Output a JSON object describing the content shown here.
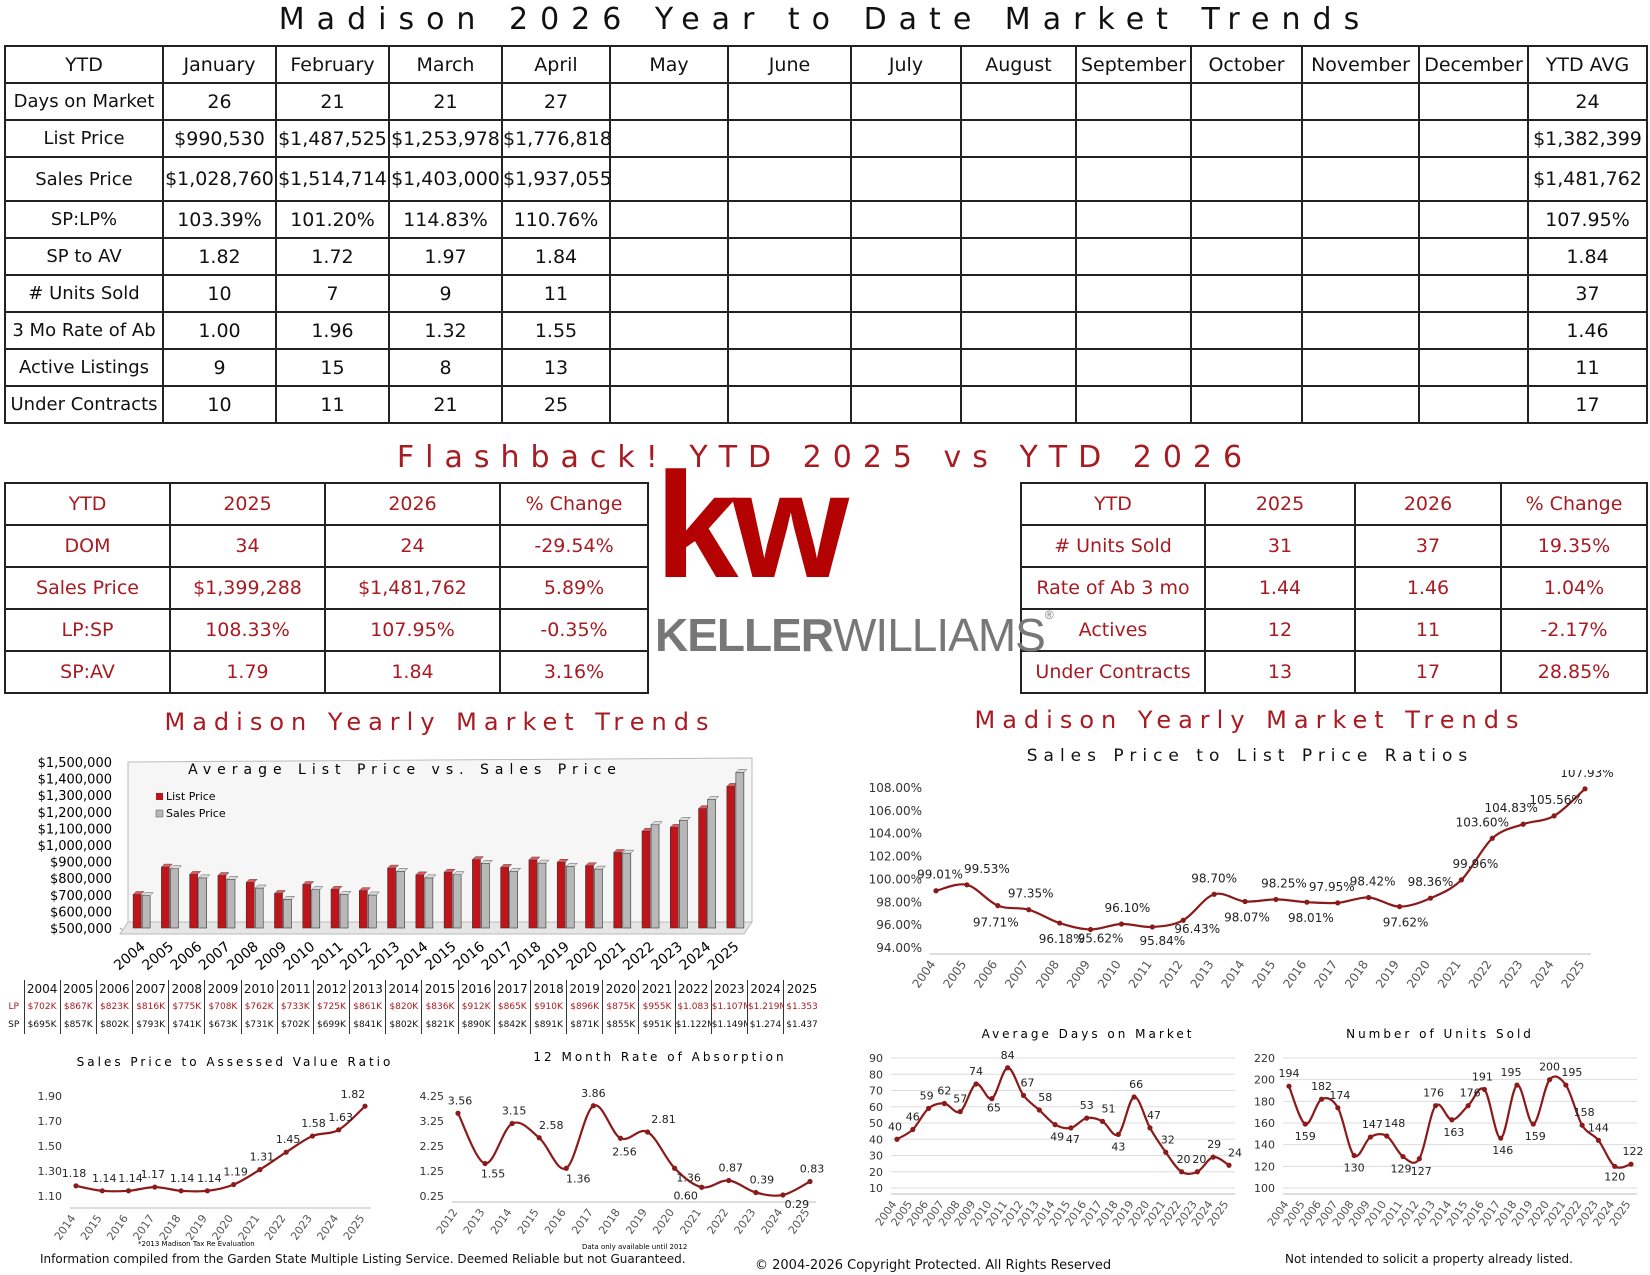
{
  "title": "Madison 2026 Year to Date Market Trends",
  "ytd": {
    "headers": [
      "YTD",
      "January",
      "February",
      "March",
      "April",
      "May",
      "June",
      "July",
      "August",
      "September",
      "October",
      "November",
      "December",
      "YTD AVG"
    ],
    "rows": [
      {
        "label": "Days on Market",
        "values": [
          "26",
          "21",
          "21",
          "27",
          "",
          "",
          "",
          "",
          "",
          "",
          "",
          ""
        ],
        "avg": "24"
      },
      {
        "label": "List Price",
        "values": [
          "$990,530",
          "$1,487,525",
          "$1,253,978",
          "$1,776,818",
          "",
          "",
          "",
          "",
          "",
          "",
          "",
          ""
        ],
        "avg": "$1,382,399"
      },
      {
        "label": "Sales Price",
        "values": [
          "$1,028,760",
          "$1,514,714",
          "$1,403,000",
          "$1,937,055",
          "",
          "",
          "",
          "",
          "",
          "",
          "",
          ""
        ],
        "avg": "$1,481,762"
      },
      {
        "label": "SP:LP%",
        "values": [
          "103.39%",
          "101.20%",
          "114.83%",
          "110.76%",
          "",
          "",
          "",
          "",
          "",
          "",
          "",
          ""
        ],
        "avg": "107.95%"
      },
      {
        "label": "SP to AV",
        "values": [
          "1.82",
          "1.72",
          "1.97",
          "1.84",
          "",
          "",
          "",
          "",
          "",
          "",
          "",
          ""
        ],
        "avg": "1.84"
      },
      {
        "label": "# Units Sold",
        "values": [
          "10",
          "7",
          "9",
          "11",
          "",
          "",
          "",
          "",
          "",
          "",
          "",
          ""
        ],
        "avg": "37"
      },
      {
        "label": "3 Mo Rate of Ab",
        "values": [
          "1.00",
          "1.96",
          "1.32",
          "1.55",
          "",
          "",
          "",
          "",
          "",
          "",
          "",
          ""
        ],
        "avg": "1.46"
      },
      {
        "label": "Active Listings",
        "values": [
          "9",
          "15",
          "8",
          "13",
          "",
          "",
          "",
          "",
          "",
          "",
          "",
          ""
        ],
        "avg": "11"
      },
      {
        "label": "Under Contracts",
        "values": [
          "10",
          "11",
          "21",
          "25",
          "",
          "",
          "",
          "",
          "",
          "",
          "",
          ""
        ],
        "avg": "17"
      }
    ]
  },
  "flashback": {
    "title": "Flashback!  YTD 2025 vs YTD 2026",
    "left": {
      "headers": [
        "YTD",
        "2025",
        "2026",
        "% Change"
      ],
      "rows": [
        [
          "DOM",
          "34",
          "24",
          "-29.54%"
        ],
        [
          "Sales Price",
          "$1,399,288",
          "$1,481,762",
          "5.89%"
        ],
        [
          "LP:SP",
          "108.33%",
          "107.95%",
          "-0.35%"
        ],
        [
          "SP:AV",
          "1.79",
          "1.84",
          "3.16%"
        ]
      ]
    },
    "right": {
      "headers": [
        "YTD",
        "2025",
        "2026",
        "% Change"
      ],
      "rows": [
        [
          "# Units Sold",
          "31",
          "37",
          "19.35%"
        ],
        [
          "Rate of Ab 3 mo",
          "1.44",
          "1.46",
          "1.04%"
        ],
        [
          "Actives",
          "12",
          "11",
          "-2.17%"
        ],
        [
          "Under Contracts",
          "13",
          "17",
          "28.85%"
        ]
      ]
    }
  },
  "logo": {
    "mark": "kw",
    "word_bold": "KELLER",
    "word_light": "WILLIAMS",
    "reg": "®",
    "brand_color": "#b40101"
  },
  "sections": {
    "left_title": "Madison Yearly Market Trends",
    "right_title": "Madison Yearly Market Trends",
    "right_subtitle": "Sales Price to List Price Ratios"
  },
  "colors": {
    "accent": "#a81b22",
    "line": "#8b1a1a",
    "bar_list": "#c0141b",
    "bar_sales": "#b8b8b8"
  },
  "chart_data": [
    {
      "id": "lp_sp_bars",
      "type": "bar",
      "title": "Average List Price vs. Sales Price",
      "categories": [
        "2004",
        "2005",
        "2006",
        "2007",
        "2008",
        "2009",
        "2010",
        "2011",
        "2012",
        "2013",
        "2014",
        "2015",
        "2016",
        "2017",
        "2018",
        "2019",
        "2020",
        "2021",
        "2022",
        "2023",
        "2024",
        "2025"
      ],
      "series": [
        {
          "name": "List Price",
          "values": [
            702,
            867,
            823,
            816,
            775,
            708,
            762,
            733,
            725,
            861,
            820,
            836,
            912,
            865,
            910,
            896,
            875,
            955,
            1083,
            1107,
            1219,
            1353
          ]
        },
        {
          "name": "Sales Price",
          "values": [
            695,
            857,
            802,
            793,
            741,
            673,
            731,
            702,
            699,
            841,
            802,
            821,
            890,
            842,
            891,
            871,
            855,
            951,
            1122,
            1149,
            1274,
            1437
          ]
        }
      ],
      "yticks": [
        "$1,500,000",
        "$1,400,000",
        "$1,300,000",
        "$1,200,000",
        "$1,100,000",
        "$1,000,000",
        "$900,000",
        "$800,000",
        "$700,000",
        "$600,000",
        "$500,000"
      ],
      "ylim": [
        500,
        1500
      ],
      "legend": "top-left",
      "table": {
        "row_labels": [
          "LP",
          "SP"
        ],
        "lp": [
          "$702K",
          "$867K",
          "$823K",
          "$816K",
          "$775K",
          "$708K",
          "$762K",
          "$733K",
          "$725K",
          "$861K",
          "$820K",
          "$836K",
          "$912K",
          "$865K",
          "$910K",
          "$896K",
          "$875K",
          "$955K",
          "$1.083",
          "$1.107M",
          "$1.219M",
          "$1.353"
        ],
        "sp": [
          "$695K",
          "$857K",
          "$802K",
          "$793K",
          "$741K",
          "$673K",
          "$731K",
          "$702K",
          "$699K",
          "$841K",
          "$802K",
          "$821K",
          "$890K",
          "$842K",
          "$891K",
          "$871K",
          "$855K",
          "$951K",
          "$1.122M",
          "$1.149M",
          "$1.274",
          "$1.437"
        ]
      }
    },
    {
      "id": "sp_lp_ratio",
      "type": "line",
      "title": "Sales Price to List Price Ratios",
      "x": [
        "2004",
        "2005",
        "2006",
        "2007",
        "2008",
        "2009",
        "2010",
        "2011",
        "2012",
        "2013",
        "2014",
        "2015",
        "2016",
        "2017",
        "2018",
        "2019",
        "2020",
        "2021",
        "2022",
        "2023",
        "2024",
        "2025"
      ],
      "values": [
        99.01,
        99.53,
        97.71,
        97.35,
        96.18,
        95.62,
        96.1,
        95.84,
        96.43,
        98.7,
        98.07,
        98.25,
        98.01,
        97.95,
        98.42,
        97.62,
        98.36,
        99.96,
        103.6,
        104.83,
        105.56,
        107.93
      ],
      "labels": [
        "99.01%",
        "99.53%",
        "97.71%",
        "97.35%",
        "96.18%",
        "95.62%",
        "96.10%",
        "95.84%",
        "96.43%",
        "98.70%",
        "98.07%",
        "98.25%",
        "98.01%",
        "97.95%",
        "98.42%",
        "97.62%",
        "98.36%",
        "99.96%",
        "103.60%",
        "104.83%",
        "105.56%",
        "107.93%"
      ],
      "yticks": [
        "108.00%",
        "106.00%",
        "104.00%",
        "102.00%",
        "100.00%",
        "98.00%",
        "96.00%",
        "94.00%"
      ],
      "ylim": [
        94,
        108
      ]
    },
    {
      "id": "sp_av",
      "type": "line",
      "title": "Sales Price to Assessed Value Ratio",
      "x": [
        "2014",
        "2015",
        "2016",
        "2017",
        "2018",
        "2019",
        "2020",
        "2021",
        "2022",
        "2023",
        "2024",
        "2025"
      ],
      "values": [
        1.18,
        1.14,
        1.14,
        1.17,
        1.14,
        1.14,
        1.19,
        1.31,
        1.45,
        1.58,
        1.63,
        1.82
      ],
      "labels": [
        "1.18",
        "1.14",
        "1.14",
        "1.17",
        "1.14",
        "1.14",
        "1.19",
        "1.31",
        "1.45",
        "1.58",
        "1.63",
        "1.82"
      ],
      "yticks": [
        "1.90",
        "1.70",
        "1.50",
        "1.30",
        "1.10"
      ],
      "ylim": [
        1.05,
        1.95
      ],
      "note": "*2013 Madison Tax Re Evaluation"
    },
    {
      "id": "absorption",
      "type": "line",
      "title": "12 Month Rate of Absorption",
      "x": [
        "2012",
        "2013",
        "2014",
        "2015",
        "2016",
        "2017",
        "2018",
        "2019",
        "2020",
        "2021",
        "2022",
        "2023",
        "2024",
        "2025"
      ],
      "values": [
        3.56,
        1.55,
        3.15,
        2.58,
        1.36,
        3.86,
        2.56,
        2.81,
        1.36,
        0.6,
        0.87,
        0.39,
        0.29,
        0.83
      ],
      "labels": [
        "3.56",
        "1.55",
        "3.15",
        "2.58",
        "1.36",
        "3.86",
        "2.56",
        "2.81",
        "1.36",
        "0.60",
        "0.87",
        "0.39",
        "0.29",
        "0.83"
      ],
      "yticks": [
        "4.25",
        "3.25",
        "2.25",
        "1.25",
        "0.25"
      ],
      "ylim": [
        0.25,
        4.25
      ],
      "note": "Data only available until 2012"
    },
    {
      "id": "dom",
      "type": "line",
      "title": "Average Days on Market",
      "x": [
        "2004",
        "2005",
        "2006",
        "2007",
        "2008",
        "2009",
        "2010",
        "2011",
        "2012",
        "2013",
        "2014",
        "2015",
        "2016",
        "2017",
        "2018",
        "2019",
        "2020",
        "2021",
        "2022",
        "2023",
        "2024",
        "2025"
      ],
      "values": [
        40,
        46,
        59,
        62,
        57,
        74,
        65,
        84,
        67,
        58,
        49,
        47,
        53,
        51,
        43,
        66,
        47,
        32,
        20,
        20,
        29,
        24
      ],
      "labels": [
        "40",
        "46",
        "59",
        "62",
        "57",
        "74",
        "65",
        "84",
        "67",
        "58",
        "49",
        "47",
        "53",
        "51",
        "43",
        "66",
        "47",
        "32",
        "20",
        "20",
        "29",
        "24"
      ],
      "yticks": [
        "90",
        "80",
        "70",
        "60",
        "50",
        "40",
        "30",
        "20",
        "10"
      ],
      "ylim": [
        10,
        90
      ]
    },
    {
      "id": "units",
      "type": "line",
      "title": "Number of Units Sold",
      "x": [
        "2004",
        "2005",
        "2006",
        "2007",
        "2008",
        "2009",
        "2010",
        "2011",
        "2012",
        "2013",
        "2014",
        "2015",
        "2016",
        "2017",
        "2018",
        "2019",
        "2020",
        "2021",
        "2022",
        "2023",
        "2024",
        "2025"
      ],
      "values": [
        194,
        159,
        182,
        174,
        130,
        147,
        148,
        129,
        127,
        176,
        163,
        176,
        191,
        146,
        195,
        159,
        200,
        195,
        158,
        144,
        120,
        122
      ],
      "labels": [
        "194",
        "159",
        "182",
        "174",
        "130",
        "147",
        "148",
        "129",
        "127",
        "176",
        "163",
        "176",
        "191",
        "146",
        "195",
        "159",
        "200",
        "195",
        "158",
        "144",
        "120",
        "122"
      ],
      "yticks": [
        "220",
        "200",
        "180",
        "160",
        "140",
        "120",
        "100"
      ],
      "ylim": [
        100,
        220
      ]
    }
  ],
  "footer": {
    "left": "Information compiled from the Garden State Multiple Listing Service.  Deemed Reliable but not Guaranteed.",
    "center": "© 2004-2026 Copyright Protected.  All Rights Reserved",
    "right": "Not intended to solicit a property already listed."
  }
}
